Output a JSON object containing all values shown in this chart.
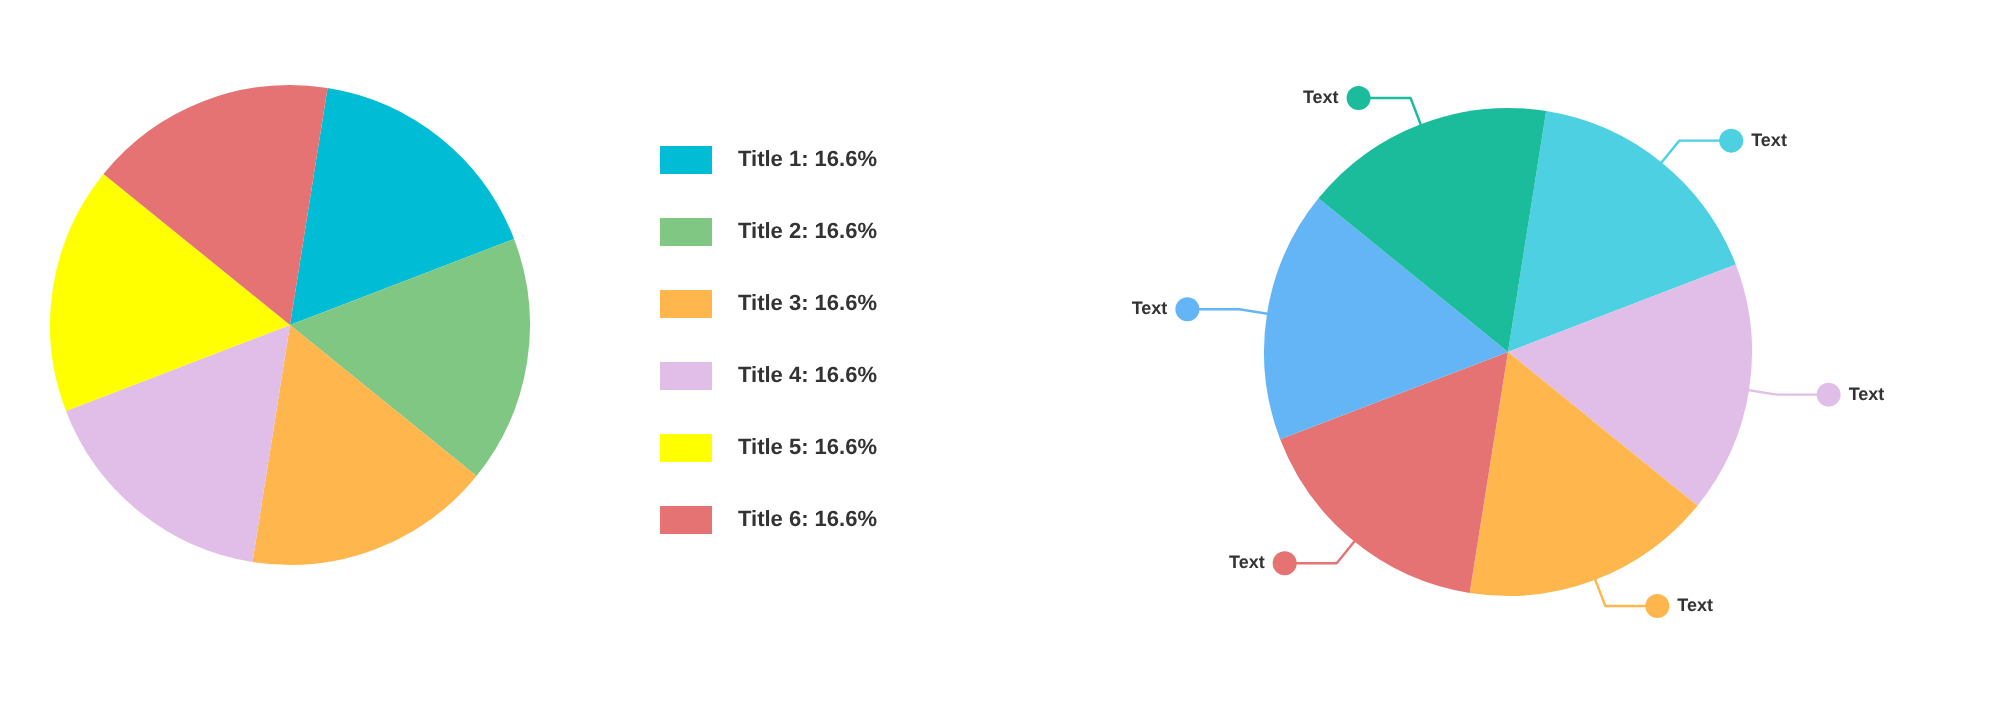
{
  "chart_data": [
    {
      "type": "pie",
      "categories": [
        "Title 1",
        "Title 2",
        "Title 3",
        "Title 4",
        "Title 5",
        "Title 6"
      ],
      "values": [
        16.6,
        16.6,
        16.6,
        16.6,
        16.6,
        16.6
      ],
      "value_labels": [
        "16.6%",
        "16.6%",
        "16.6%",
        "16.6%",
        "16.6%",
        "16.6%"
      ],
      "colors": [
        "#00bcd4",
        "#81c784",
        "#ffb74d",
        "#e1bee7",
        "#ffff00",
        "#e57373"
      ],
      "legend": "right"
    },
    {
      "type": "pie",
      "categories": [
        "Text",
        "Text",
        "Text",
        "Text",
        "Text",
        "Text"
      ],
      "values": [
        16.67,
        16.67,
        16.67,
        16.67,
        16.66,
        16.66
      ],
      "colors": [
        "#4dd0e1",
        "#e1bee7",
        "#ffb74d",
        "#e57373",
        "#64b5f6",
        "#1abc9c"
      ]
    }
  ]
}
